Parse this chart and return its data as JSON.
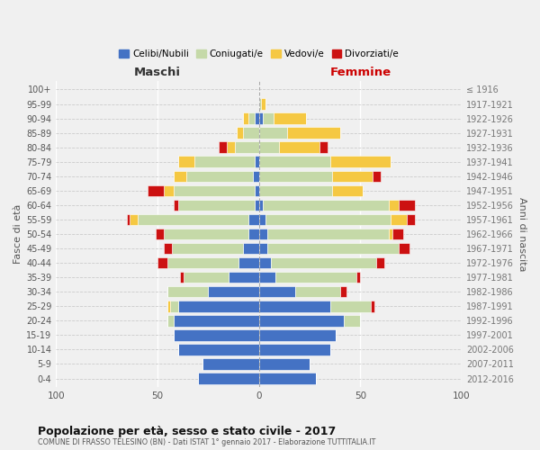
{
  "age_groups": [
    "0-4",
    "5-9",
    "10-14",
    "15-19",
    "20-24",
    "25-29",
    "30-34",
    "35-39",
    "40-44",
    "45-49",
    "50-54",
    "55-59",
    "60-64",
    "65-69",
    "70-74",
    "75-79",
    "80-84",
    "85-89",
    "90-94",
    "95-99",
    "100+"
  ],
  "birth_years": [
    "2012-2016",
    "2007-2011",
    "2002-2006",
    "1997-2001",
    "1992-1996",
    "1987-1991",
    "1982-1986",
    "1977-1981",
    "1972-1976",
    "1967-1971",
    "1962-1966",
    "1957-1961",
    "1952-1956",
    "1947-1951",
    "1942-1946",
    "1937-1941",
    "1932-1936",
    "1927-1931",
    "1922-1926",
    "1917-1921",
    "≤ 1916"
  ],
  "males": {
    "celibe": [
      30,
      28,
      40,
      42,
      42,
      40,
      25,
      15,
      10,
      8,
      5,
      5,
      2,
      2,
      3,
      2,
      0,
      0,
      2,
      0,
      0
    ],
    "coniugato": [
      0,
      0,
      0,
      0,
      3,
      4,
      20,
      22,
      35,
      35,
      42,
      55,
      38,
      40,
      33,
      30,
      12,
      8,
      3,
      0,
      0
    ],
    "vedovo": [
      0,
      0,
      0,
      0,
      0,
      1,
      0,
      0,
      0,
      0,
      0,
      4,
      0,
      5,
      6,
      8,
      4,
      3,
      3,
      0,
      0
    ],
    "divorziato": [
      0,
      0,
      0,
      0,
      0,
      0,
      0,
      2,
      5,
      4,
      4,
      1,
      2,
      8,
      0,
      0,
      4,
      0,
      0,
      0,
      0
    ]
  },
  "females": {
    "nubile": [
      28,
      25,
      35,
      38,
      42,
      35,
      18,
      8,
      6,
      4,
      4,
      3,
      2,
      0,
      0,
      0,
      0,
      0,
      2,
      0,
      0
    ],
    "coniugata": [
      0,
      0,
      0,
      0,
      8,
      20,
      22,
      40,
      52,
      65,
      60,
      62,
      62,
      36,
      36,
      35,
      10,
      14,
      5,
      1,
      0
    ],
    "vedova": [
      0,
      0,
      0,
      0,
      0,
      0,
      0,
      0,
      0,
      0,
      2,
      8,
      5,
      15,
      20,
      30,
      20,
      26,
      16,
      2,
      0
    ],
    "divorziata": [
      0,
      0,
      0,
      0,
      0,
      2,
      3,
      2,
      4,
      5,
      5,
      4,
      8,
      0,
      4,
      0,
      4,
      0,
      0,
      0,
      0
    ]
  },
  "colors": {
    "celibe_nubile": "#4472c4",
    "coniugato": "#c5d9a8",
    "vedovo": "#f5c842",
    "divorziato": "#cc1111"
  },
  "title": "Popolazione per età, sesso e stato civile - 2017",
  "subtitle": "COMUNE DI FRASSO TELESINO (BN) - Dati ISTAT 1° gennaio 2017 - Elaborazione TUTTITALIA.IT",
  "xlabel_left": "Maschi",
  "xlabel_right": "Femmine",
  "ylabel_left": "Fasce di età",
  "ylabel_right": "Anni di nascita",
  "xlim": 100,
  "legend_labels": [
    "Celibi/Nubili",
    "Coniugati/e",
    "Vedovi/e",
    "Divorziati/e"
  ],
  "bg_color": "#f0f0f0",
  "bar_edge_color": "white"
}
